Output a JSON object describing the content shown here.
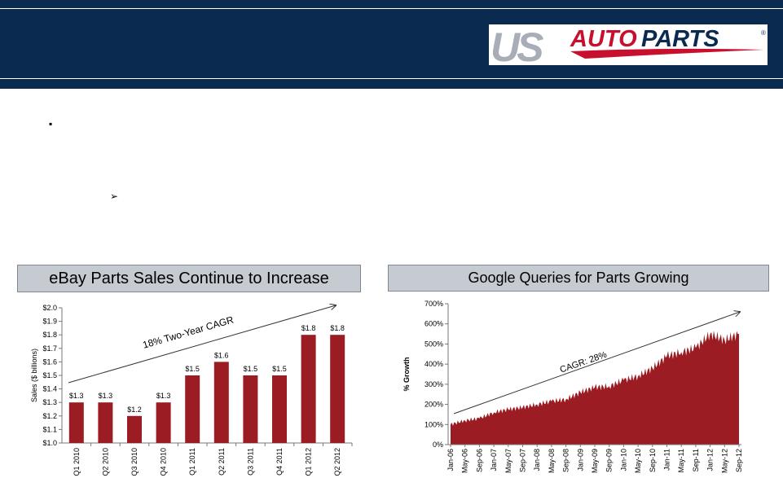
{
  "logo": {
    "us": "US",
    "auto": "AUTO",
    "parts": "PARTS",
    "reg": "®"
  },
  "bullets": {
    "main": "▪",
    "sub": "➢"
  },
  "panels": {
    "left_title": "eBay Parts Sales Continue to Increase",
    "right_title": "Google Queries for Parts Growing"
  },
  "colors": {
    "header": "#0b2a4f",
    "bar": "#9c1c23",
    "panel_bg": "#c6cad1",
    "logo_red": "#c8102e",
    "logo_gray": "#a9adb8"
  },
  "chart_data": [
    {
      "type": "bar",
      "categories": [
        "Q1 2010",
        "Q2 2010",
        "Q3 2010",
        "Q4 2010",
        "Q1 2011",
        "Q2 2011",
        "Q3 2011",
        "Q4 2011",
        "Q1 2012",
        "Q2 2012"
      ],
      "values": [
        1.3,
        1.3,
        1.2,
        1.3,
        1.5,
        1.6,
        1.5,
        1.5,
        1.8,
        1.8
      ],
      "data_labels": [
        "$1.3",
        "$1.3",
        "$1.2",
        "$1.3",
        "$1.5",
        "$1.6",
        "$1.5",
        "$1.5",
        "$1.8",
        "$1.8"
      ],
      "ylabel": "Sales ($ billions)",
      "ylim": [
        1.0,
        2.0
      ],
      "yticks": [
        "$1.0",
        "$1.1",
        "$1.2",
        "$1.3",
        "$1.4",
        "$1.5",
        "$1.6",
        "$1.7",
        "$1.8",
        "$1.9",
        "$2.0"
      ],
      "annotation": "18% Two-Year CAGR",
      "grid": false
    },
    {
      "type": "area",
      "ylabel": "% Growth",
      "ylim": [
        0,
        700
      ],
      "yticks": [
        "0%",
        "100%",
        "200%",
        "300%",
        "400%",
        "500%",
        "600%",
        "700%"
      ],
      "xticks": [
        "Jan-06",
        "May-06",
        "Sep-06",
        "Jan-07",
        "May-07",
        "Sep-07",
        "Jan-08",
        "May-08",
        "Sep-08",
        "Jan-09",
        "May-09",
        "Sep-09",
        "Jan-10",
        "May-10",
        "Sep-10",
        "Jan-11",
        "May-11",
        "Sep-11",
        "Jan-12",
        "May-12",
        "Sep-12"
      ],
      "x": [
        "Jan-06",
        "May-06",
        "Sep-06",
        "Jan-07",
        "May-07",
        "Sep-07",
        "Jan-08",
        "May-08",
        "Sep-08",
        "Jan-09",
        "May-09",
        "Sep-09",
        "Jan-10",
        "May-10",
        "Sep-10",
        "Jan-11",
        "May-11",
        "Sep-11",
        "Jan-12",
        "May-12",
        "Sep-12"
      ],
      "values": [
        100,
        120,
        130,
        160,
        175,
        185,
        200,
        215,
        225,
        260,
        285,
        290,
        320,
        340,
        380,
        440,
        460,
        480,
        550,
        520,
        550
      ],
      "annotation": "CAGR: 28%",
      "grid": false
    }
  ]
}
